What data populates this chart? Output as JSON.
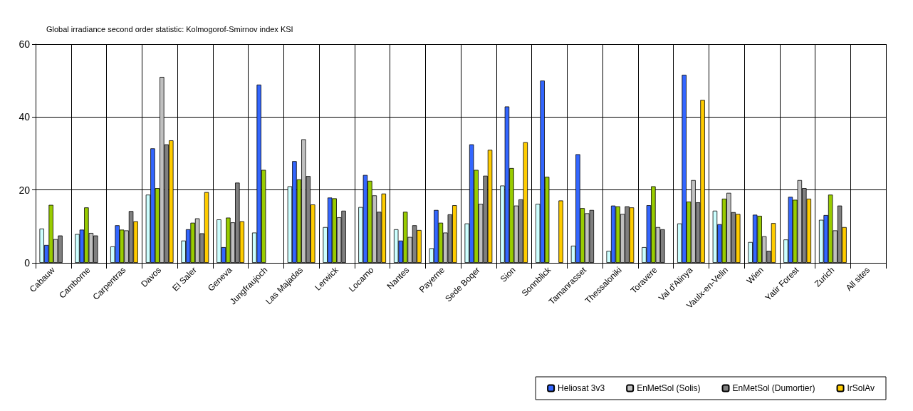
{
  "chart_data": {
    "type": "bar",
    "title": "Global irradiance second order statistic: Kolmogorof-Smirnov index KSI",
    "categories": [
      "Cabauw",
      "Camborne",
      "Carpentras",
      "Davos",
      "El Saler",
      "Geneva",
      "Jungfraujoch",
      "Las Majadas",
      "Lerwick",
      "Locarno",
      "Nantes",
      "Payerne",
      "Sede Boqer",
      "Sion",
      "Sonnblick",
      "Tamanrasset",
      "Thessaloniki",
      "Toravere",
      "Val d'Alinya",
      "Vaulx-en-Velin",
      "Wien",
      "Yatir Forest",
      "Zurich",
      "All sites"
    ],
    "series": [
      {
        "color": "#ccffff",
        "values": [
          9.4,
          7.9,
          4.5,
          18.7,
          6.1,
          11.9,
          8.3,
          21.0,
          9.8,
          15.3,
          9.2,
          4.0,
          10.8,
          21.2,
          16.2,
          4.7,
          3.3,
          4.3,
          10.8,
          14.3,
          5.7,
          6.4,
          11.8,
          null
        ]
      },
      {
        "name": "Heliosat 3v3",
        "color": "#3366ff",
        "values": [
          4.9,
          9.1,
          10.3,
          31.4,
          9.2,
          4.3,
          48.9,
          27.9,
          17.9,
          24.1,
          6.1,
          14.5,
          32.5,
          42.9,
          50.0,
          29.8,
          15.7,
          15.8,
          51.6,
          10.6,
          13.2,
          18.1,
          13.1,
          null
        ]
      },
      {
        "color": "#99cc00",
        "values": [
          15.9,
          15.2,
          9.1,
          20.5,
          11.0,
          12.4,
          25.5,
          22.9,
          17.7,
          22.5,
          14.0,
          11.0,
          25.5,
          26.0,
          23.6,
          15.0,
          15.5,
          21.0,
          16.8,
          17.6,
          12.9,
          17.3,
          18.7,
          null
        ]
      },
      {
        "name": "EnMetSol (Solis)",
        "color": "#c0c0c0",
        "values": [
          6.5,
          8.2,
          8.9,
          51.0,
          12.2,
          11.1,
          null,
          33.9,
          12.5,
          18.5,
          7.1,
          8.3,
          16.2,
          15.7,
          null,
          13.6,
          13.4,
          9.8,
          22.7,
          19.2,
          7.3,
          22.7,
          8.9,
          null
        ]
      },
      {
        "name": "EnMetSol (Dumortier)",
        "color": "#808080",
        "values": [
          7.5,
          7.5,
          14.2,
          32.5,
          8.1,
          22.0,
          null,
          23.8,
          14.3,
          14.0,
          10.3,
          13.3,
          23.9,
          17.4,
          null,
          14.5,
          15.5,
          9.2,
          16.6,
          13.9,
          3.3,
          20.5,
          15.7,
          null
        ]
      },
      {
        "name": "IrSolAv",
        "color": "#ffcc00",
        "values": [
          null,
          null,
          11.4,
          33.6,
          19.4,
          11.4,
          null,
          16.0,
          null,
          19.0,
          9.0,
          15.8,
          31.0,
          33.1,
          17.1,
          null,
          15.2,
          null,
          44.7,
          13.4,
          10.9,
          17.6,
          9.8,
          null
        ]
      }
    ],
    "ylim": [
      0,
      60
    ],
    "yticks": [
      0,
      20,
      40,
      60
    ],
    "grid": true,
    "legend": "bottom right"
  }
}
